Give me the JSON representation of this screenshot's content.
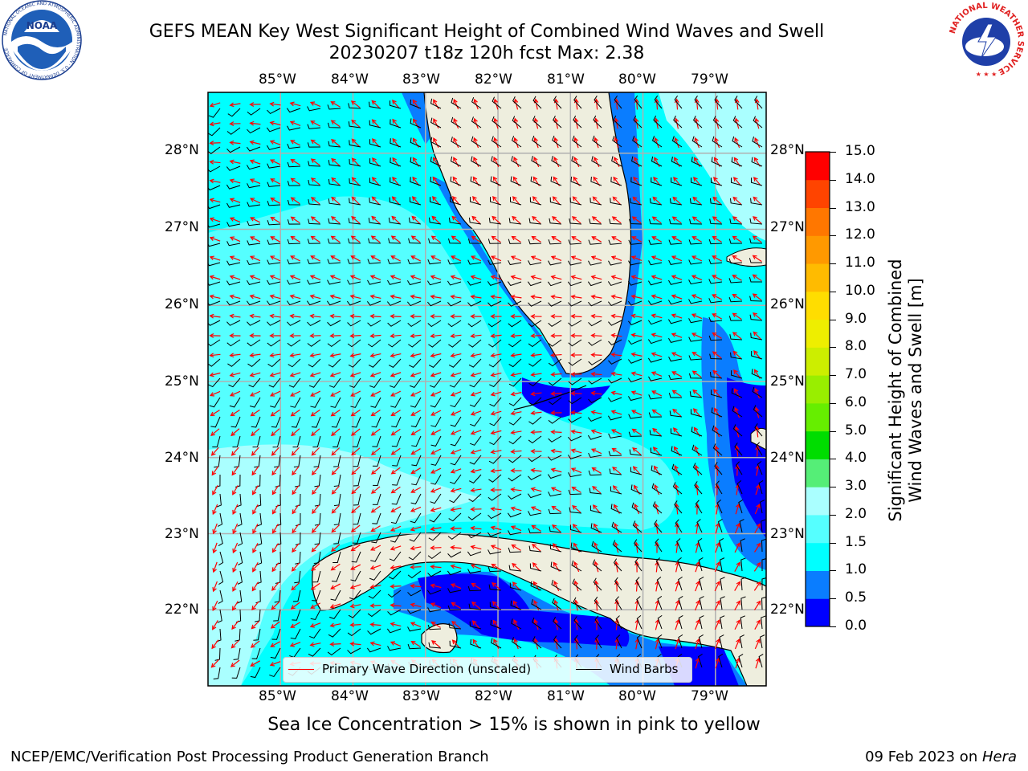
{
  "title": {
    "line1": "GEFS MEAN Key West Significant Height of Combined Wind Waves and Swell",
    "line2": "20230207 t18z 120h fcst   Max: 2.38"
  },
  "map": {
    "lon_ticks": [
      "85°W",
      "84°W",
      "83°W",
      "82°W",
      "81°W",
      "80°W",
      "79°W"
    ],
    "lat_ticks": [
      "28°N",
      "27°N",
      "26°N",
      "25°N",
      "24°N",
      "23°N",
      "22°N"
    ],
    "extent": {
      "lon": [
        -86,
        -78.3
      ],
      "lat": [
        21.0,
        28.8
      ]
    },
    "land_color": "#eeeede",
    "grid_color": "#b0b0b0"
  },
  "colorbar": {
    "label_line1": "Significant Height of Combined",
    "label_line2": "Wind Waves and Swell [m]",
    "ticks": [
      "0.0",
      "0.5",
      "1.0",
      "1.5",
      "2.0",
      "3.0",
      "4.0",
      "5.0",
      "6.0",
      "7.0",
      "8.0",
      "9.0",
      "10.0",
      "11.0",
      "12.0",
      "13.0",
      "14.0",
      "15.0"
    ],
    "colors": [
      "#0000ff",
      "#0a7dff",
      "#00ffff",
      "#55ffff",
      "#aaffff",
      "#55ee77",
      "#00dd00",
      "#66ee00",
      "#99ee00",
      "#ccee00",
      "#eeee00",
      "#ffdd00",
      "#ffbb00",
      "#ff9900",
      "#ff7700",
      "#ff4400",
      "#ff0000"
    ]
  },
  "legend": {
    "wave_label": "Primary Wave Direction (unscaled)",
    "wave_color": "#ff0000",
    "wind_label": "Wind Barbs",
    "wind_color": "#000000"
  },
  "logos": {
    "noaa_text": "NOAA",
    "noaa_ring": "NATIONAL OCEANIC AND ATMOSPHERIC ADMINISTRATION · U.S. DEPARTMENT OF COMMERCE",
    "nws_ring": "NATIONAL WEATHER SERVICE"
  },
  "caption": "Sea Ice Concentration > 15% is shown in pink to yellow",
  "footer": {
    "left": "NCEP/EMC/Verification Post Processing Product Generation Branch",
    "right_date": "09 Feb 2023 on ",
    "right_host": "Hera"
  }
}
